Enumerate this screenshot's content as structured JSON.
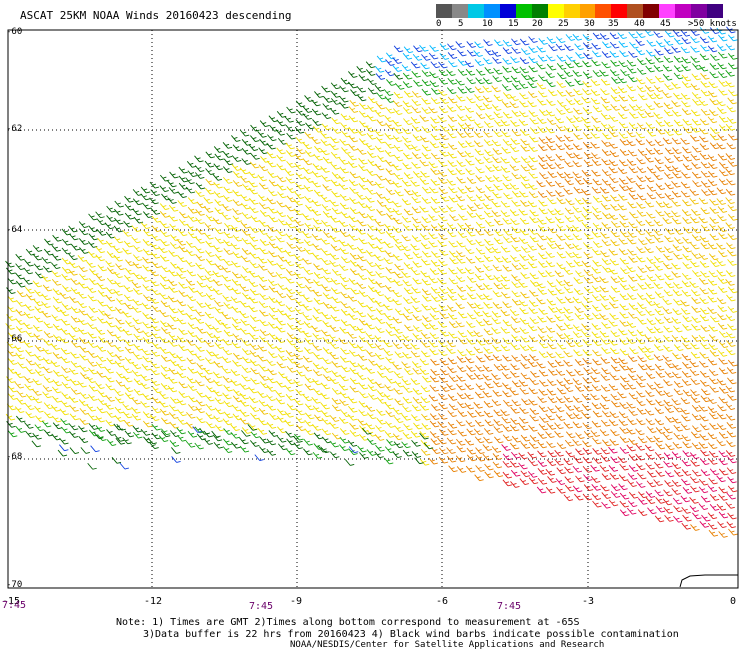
{
  "title": "ASCAT 25KM NOAA Winds 20160423 descending",
  "legend": {
    "colors": [
      "#555555",
      "#888888",
      "#00c8e6",
      "#0090ff",
      "#0000d8",
      "#00c000",
      "#008000",
      "#ffff00",
      "#ffd000",
      "#ffa000",
      "#ff5000",
      "#ff0000",
      "#b05020",
      "#800000",
      "#ff40ff",
      "#c000c0",
      "#8000a0",
      "#400080"
    ],
    "labels": [
      "0",
      "5",
      "10",
      "15",
      "20",
      "25",
      "30",
      "35",
      "40",
      "45",
      ">50 knots"
    ]
  },
  "y_axis": {
    "labels": [
      "-60",
      "-62",
      "-64",
      "-66",
      "-68",
      "-70"
    ]
  },
  "x_axis": {
    "labels": [
      "-15",
      "-12",
      "-9",
      "-6",
      "-3",
      "0"
    ]
  },
  "times": [
    "7:45",
    "7:45",
    "7:45"
  ],
  "notes": {
    "line1": "Note: 1) Times are GMT 2)Times along bottom correspond to measurement at -65S",
    "line2": "3)Data buffer is 22 hrs from 20160423 4) Black wind barbs indicate possible contamination",
    "line3": "NOAA/NESDIS/Center for Satellite Applications and Research"
  },
  "barb_colors": {
    "blue": "#1040e0",
    "cyan": "#00b8ff",
    "green": "#10a010",
    "darkgreen": "#006000",
    "yellow": "#f2e000",
    "gold": "#f0c000",
    "orange": "#e88000",
    "red": "#e02020",
    "magenta": "#e00060",
    "black": "#000000"
  }
}
